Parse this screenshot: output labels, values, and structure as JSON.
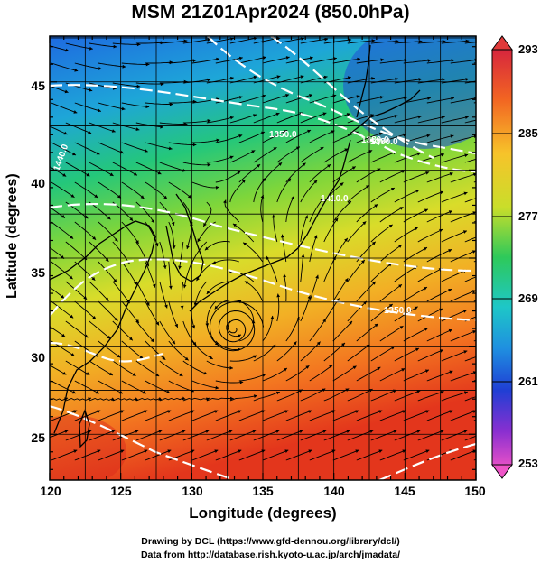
{
  "title": "MSM 21Z01Apr2024 (850.0hPa)",
  "xaxis": {
    "label": "Longitude (degrees)",
    "ticks": [
      "120",
      "125",
      "130",
      "135",
      "140",
      "145",
      "150"
    ],
    "range": [
      120,
      150
    ]
  },
  "yaxis": {
    "label": "Latitude  (degrees)",
    "ticks": [
      "25",
      "30",
      "35",
      "40",
      "45"
    ],
    "range": [
      22.4,
      47.6
    ]
  },
  "colorbar": {
    "ticks": [
      "293",
      "285",
      "277",
      "269",
      "261",
      "253"
    ],
    "range": [
      253,
      293
    ]
  },
  "contour_labels": [
    "1380.0",
    "1350.0",
    "1410.0",
    "1440.0",
    "1350.0",
    "1380.0"
  ],
  "credits": {
    "line1": "Drawing by DCL (https://www.gfd-dennou.org/library/dcl/)",
    "line2": "Data from http://database.rish.kyoto-u.ac.jp/arch/jmadata/"
  },
  "colors": {
    "frame": "#000000",
    "contour": "#ffffff",
    "streamline": "#000000"
  }
}
